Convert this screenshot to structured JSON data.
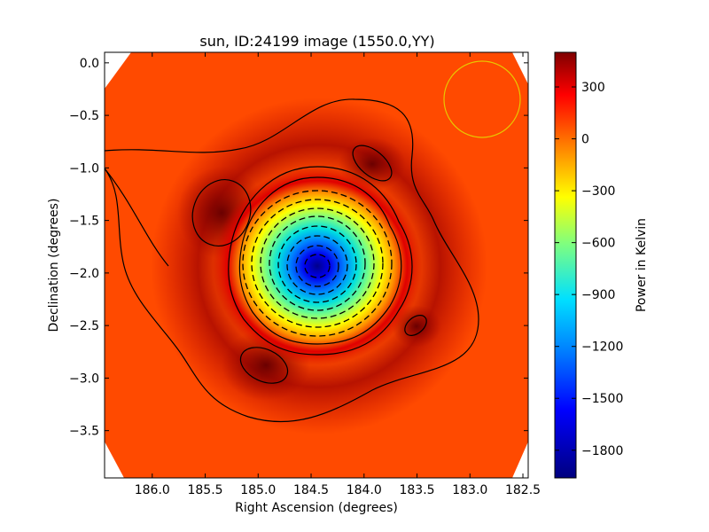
{
  "chart_data": {
    "type": "heatmap",
    "title": "sun, ID:24199 image (1550.0,YY)",
    "xlabel": "Right Ascension (degrees)",
    "ylabel": "Declination (degrees)",
    "xlim": [
      186.45,
      182.45
    ],
    "ylim": [
      -3.95,
      0.1
    ],
    "x_ticks": [
      "186.0",
      "185.5",
      "185.0",
      "184.5",
      "184.0",
      "183.5",
      "183.0",
      "182.5"
    ],
    "x_tick_values": [
      186.0,
      185.5,
      185.0,
      184.5,
      184.0,
      183.5,
      183.0,
      182.5
    ],
    "y_ticks": [
      "0.0",
      "−0.5",
      "−1.0",
      "−1.5",
      "−2.0",
      "−2.5",
      "−3.0",
      "−3.5"
    ],
    "y_tick_values": [
      0.0,
      -0.5,
      -1.0,
      -1.5,
      -2.0,
      -2.5,
      -3.0,
      -3.5
    ],
    "colorbar": {
      "label": "Power in Kelvin",
      "range": [
        -1960,
        500
      ],
      "colormap": "jet",
      "ticks": [
        "300",
        "0",
        "−300",
        "−600",
        "−900",
        "−1200",
        "−1500",
        "−1800"
      ],
      "tick_values": [
        300,
        0,
        -300,
        -600,
        -900,
        -1200,
        -1500,
        -1800
      ]
    },
    "source": {
      "center": [
        184.42,
        -1.95
      ],
      "min_value": -1960
    },
    "beam_circle": {
      "center": [
        182.87,
        -0.35
      ],
      "color": "#e8c800"
    },
    "contour_color": "#000000",
    "background_color": "#ff4a00"
  }
}
